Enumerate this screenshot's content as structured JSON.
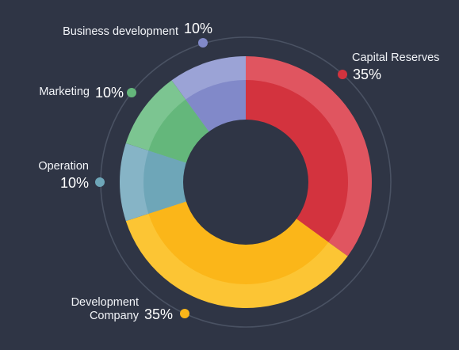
{
  "chart_data": {
    "type": "pie",
    "donut": true,
    "title": "",
    "categories": [
      "Capital Reserves",
      "Development Company",
      "Operation",
      "Marketing",
      "Business development"
    ],
    "values": [
      35,
      35,
      10,
      10,
      10
    ],
    "value_labels": [
      "35%",
      "35%",
      "10%",
      "10%",
      "10%"
    ],
    "label_lines": [
      [
        "Capital Reserves"
      ],
      [
        "Development",
        "Company"
      ],
      [
        "Operation"
      ],
      [
        "Marketing"
      ],
      [
        "Business development"
      ]
    ],
    "colors": {
      "outer": [
        "#e05560",
        "#fcc534",
        "#86b4c6",
        "#7cc591",
        "#9ba3d6"
      ],
      "inner": [
        "#d3333e",
        "#fbb619",
        "#6ea6b8",
        "#64b77b",
        "#8189c9"
      ],
      "markers": [
        "#d3333e",
        "#fbb619",
        "#6ea6b8",
        "#64b77b",
        "#8189c9"
      ],
      "background": "#2f3545",
      "orbit": "#4a5263",
      "hole": "#2f3545"
    },
    "start_angle_deg": 0,
    "direction": "clockwise",
    "legend": "none"
  }
}
